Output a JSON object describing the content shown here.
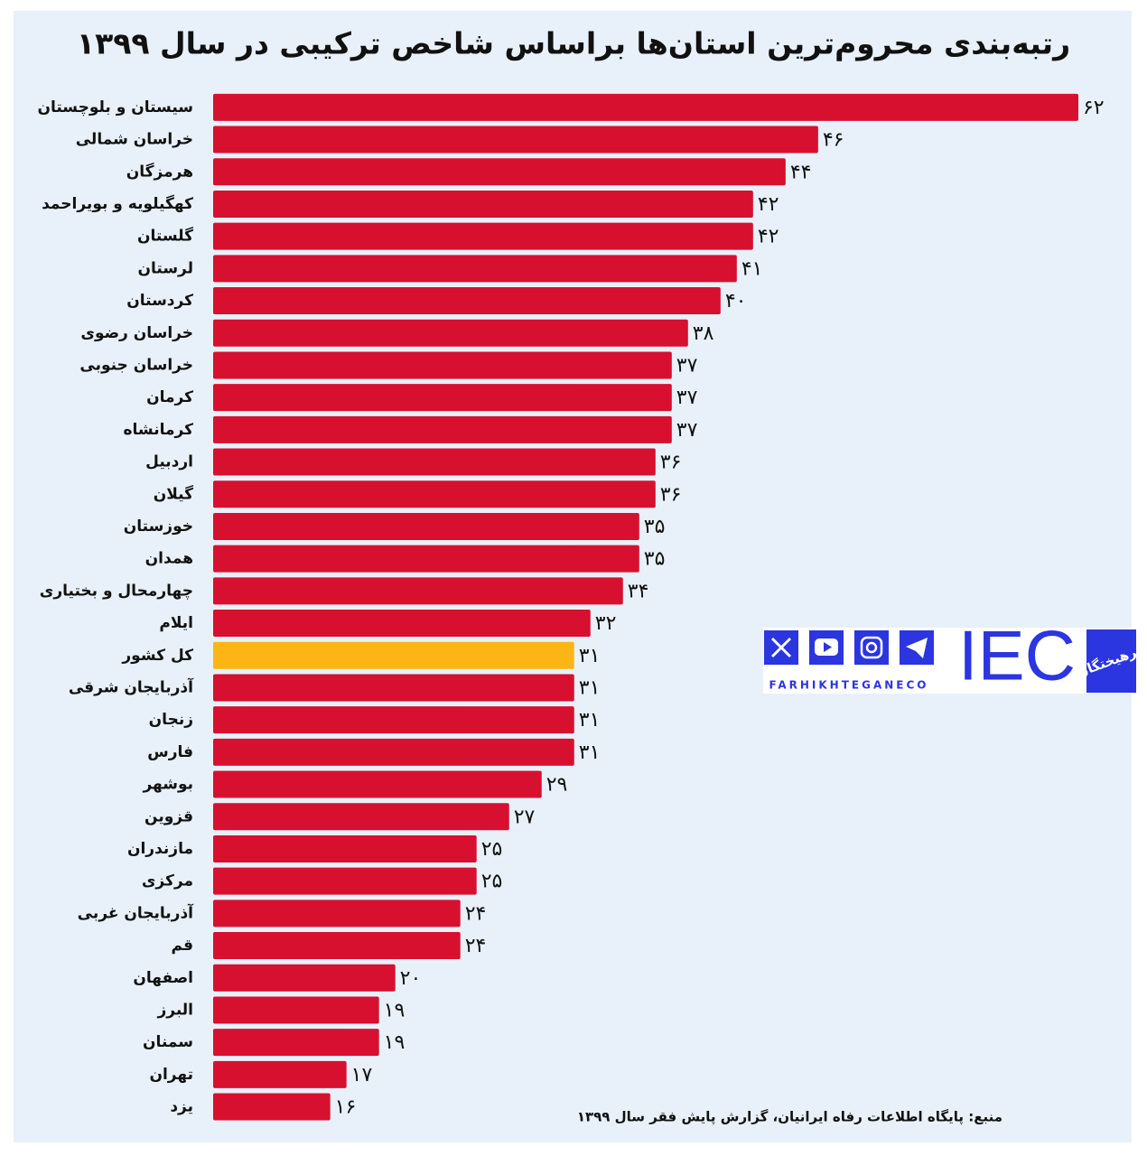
{
  "chart_data": {
    "type": "bar",
    "orientation": "horizontal",
    "title": "رتبه‌بندی محروم‌ترین استان‌ها براساس شاخص ترکیبی در سال ۱۳۹۹",
    "source": "منبع: پایگاه اطلاعات رفاه ایرانیان، گزارش پایش فقر سال ۱۳۹۹",
    "logo": {
      "handle": "FARHIKHTEGANECO",
      "mark": "IEC",
      "name": "فرهیختگان"
    },
    "categories": [
      "سیستان و بلوچستان",
      "خراسان شمالی",
      "هرمزگان",
      "کهگیلویه و بویراحمد",
      "گلستان",
      "لرستان",
      "کردستان",
      "خراسان رضوی",
      "خراسان جنوبی",
      "کرمان",
      "کرمانشاه",
      "اردبیل",
      "گیلان",
      "خوزستان",
      "همدان",
      "چهارمحال و بختیاری",
      "ایلام",
      "کل کشور",
      "آذربایجان شرقی",
      "زنجان",
      "فارس",
      "بوشهر",
      "قزوین",
      "مازندران",
      "مرکزی",
      "آذربایجان غربی",
      "قم",
      "اصفهان",
      "البرز",
      "سمنان",
      "تهران",
      "یزد"
    ],
    "values": [
      62,
      46,
      44,
      42,
      42,
      41,
      40,
      38,
      37,
      37,
      37,
      36,
      36,
      35,
      35,
      34,
      32,
      31,
      31,
      31,
      31,
      29,
      27,
      25,
      25,
      24,
      24,
      20,
      19,
      19,
      17,
      16
    ],
    "value_labels": [
      "۶۲",
      "۴۶",
      "۴۴",
      "۴۲",
      "۴۲",
      "۴۱",
      "۴۰",
      "۳۸",
      "۳۷",
      "۳۷",
      "۳۷",
      "۳۶",
      "۳۶",
      "۳۵",
      "۳۵",
      "۳۴",
      "۳۲",
      "۳۱",
      "۳۱",
      "۳۱",
      "۳۱",
      "۲۹",
      "۲۷",
      "۲۵",
      "۲۵",
      "۲۴",
      "۲۴",
      "۲۰",
      "۱۹",
      "۱۹",
      "۱۷",
      "۱۶"
    ],
    "colors": [
      "#d7102f",
      "#d7102f",
      "#d7102f",
      "#d7102f",
      "#d7102f",
      "#d7102f",
      "#d7102f",
      "#d7102f",
      "#d7102f",
      "#d7102f",
      "#d7102f",
      "#d7102f",
      "#d7102f",
      "#d7102f",
      "#d7102f",
      "#d7102f",
      "#d7102f",
      "#fdb515",
      "#d7102f",
      "#d7102f",
      "#d7102f",
      "#d7102f",
      "#d7102f",
      "#d7102f",
      "#d7102f",
      "#d7102f",
      "#d7102f",
      "#d7102f",
      "#d7102f",
      "#d7102f",
      "#d7102f",
      "#d7102f"
    ],
    "xlim": [
      8.8,
      64.5
    ]
  }
}
